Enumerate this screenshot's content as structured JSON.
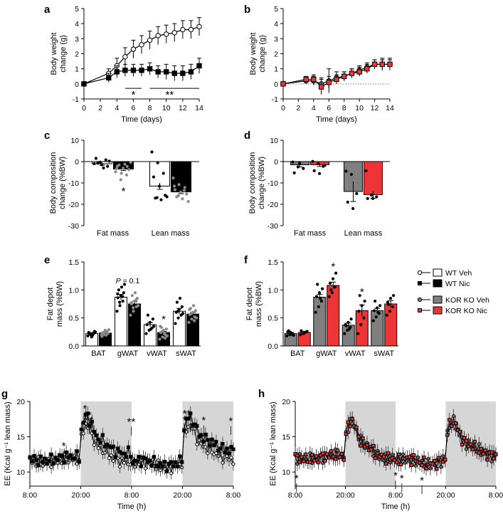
{
  "colors": {
    "wt_veh": "#ffffff",
    "wt_nic": "#000000",
    "kor_veh": "#7f7f7f",
    "kor_nic": "#ee3536",
    "night": "#d6d6d6",
    "dot_grey": "#8a8a8a"
  },
  "legend": {
    "items": [
      "WT Veh",
      "WT Nic",
      "KOR KO Veh",
      "KOR KO Nic"
    ]
  },
  "chart_data": [
    {
      "panel": "a",
      "type": "line",
      "xlabel": "Time (days)",
      "ylabel": "Body weight change (g)",
      "xlim": [
        0,
        14
      ],
      "ylim": [
        -1,
        5
      ],
      "xticks": [
        0,
        2,
        4,
        6,
        8,
        10,
        12,
        14
      ],
      "yticks": [
        -1,
        0,
        1,
        2,
        3,
        4,
        5
      ],
      "series": [
        {
          "name": "WT Veh",
          "x": [
            0,
            3,
            4,
            5,
            6,
            7,
            8,
            9,
            10,
            11,
            12,
            13,
            14
          ],
          "y": [
            0,
            0.7,
            1.2,
            1.8,
            2.3,
            2.6,
            2.9,
            3.2,
            3.3,
            3.4,
            3.6,
            3.6,
            3.8
          ],
          "err": [
            0.1,
            0.3,
            0.5,
            0.6,
            0.6,
            0.6,
            0.6,
            0.6,
            0.6,
            0.6,
            0.6,
            0.6,
            0.6
          ]
        },
        {
          "name": "WT Nic",
          "x": [
            0,
            3,
            4,
            5,
            6,
            7,
            8,
            9,
            10,
            11,
            12,
            13,
            14
          ],
          "y": [
            0,
            0.4,
            0.8,
            0.9,
            0.9,
            0.9,
            1.0,
            0.8,
            0.8,
            0.7,
            0.7,
            0.8,
            1.2
          ],
          "err": [
            0.1,
            0.3,
            0.4,
            0.4,
            0.4,
            0.4,
            0.4,
            0.4,
            0.5,
            0.5,
            0.5,
            0.5,
            0.5
          ]
        }
      ],
      "annotations": {
        "lines": [
          {
            "x1": 5,
            "x2": 7,
            "y": -0.3
          },
          {
            "x1": 8,
            "x2": 14,
            "y": -0.3
          }
        ],
        "stars": [
          {
            "x": 6,
            "text": "*"
          },
          {
            "x": 10.4,
            "text": "**"
          }
        ]
      }
    },
    {
      "panel": "b",
      "type": "line",
      "xlabel": "Time (days)",
      "ylabel": "Body weight change (g)",
      "xlim": [
        0,
        14
      ],
      "ylim": [
        -1,
        5
      ],
      "xticks": [
        0,
        2,
        4,
        6,
        8,
        10,
        12,
        14
      ],
      "yticks": [
        -1,
        0,
        1,
        2,
        3,
        4,
        5
      ],
      "baseline_dotted": 0,
      "series": [
        {
          "name": "KOR KO Veh",
          "x": [
            0,
            3,
            4,
            5,
            6,
            7,
            8,
            9,
            10,
            11,
            12,
            13,
            14
          ],
          "y": [
            0,
            0.2,
            0.2,
            0.0,
            0.2,
            0.4,
            0.5,
            0.7,
            0.9,
            1.1,
            1.3,
            1.3,
            1.3
          ],
          "err": [
            0.1,
            0.2,
            0.3,
            0.4,
            0.8,
            0.4,
            0.3,
            0.3,
            0.3,
            0.3,
            0.3,
            0.4,
            0.4
          ]
        },
        {
          "name": "KOR KO Nic",
          "x": [
            0,
            3,
            4,
            5,
            6,
            7,
            8,
            9,
            10,
            11,
            12,
            13,
            14
          ],
          "y": [
            0,
            0.3,
            0.3,
            -0.2,
            0.1,
            0.3,
            0.5,
            0.7,
            0.8,
            1.0,
            1.3,
            1.3,
            1.3
          ],
          "err": [
            0.1,
            0.2,
            0.3,
            0.5,
            0.4,
            0.3,
            0.3,
            0.3,
            0.3,
            0.3,
            0.3,
            0.3,
            0.3
          ]
        }
      ]
    },
    {
      "panel": "c",
      "type": "bar",
      "ylabel": "Body composition change (%BW)",
      "ylim": [
        -30,
        10
      ],
      "yticks": [
        -30,
        -20,
        -10,
        0,
        10
      ],
      "groups": [
        "Fat mass",
        "Lean mass"
      ],
      "series": [
        {
          "name": "WT Veh",
          "values": [
            -1,
            -11.5
          ],
          "err": [
            0.7,
            1.5
          ]
        },
        {
          "name": "WT Nic",
          "values": [
            -3.5,
            -14.2
          ],
          "err": [
            0.7,
            0.8
          ]
        }
      ],
      "points": [
        [
          [
            -1,
            -0.3,
            0.8,
            1.5,
            -1.5,
            -2.2,
            -0.7,
            -3.0,
            0.2
          ],
          [
            -4.8,
            -5.5,
            -2.3,
            -2.2,
            -3.1,
            -3.8,
            -1.6,
            -1.2,
            -0.4,
            -8.5,
            -6.3,
            -3.3
          ]
        ],
        [
          [
            4.5,
            -0.6,
            -5.5,
            -7.2,
            -11.5,
            -15.8,
            -17.1,
            -17.9,
            -16.5,
            -16.9
          ],
          [
            -7.7,
            -10.8,
            -12.1,
            -13.2,
            -14.3,
            -15.2,
            -16.5,
            -17.4,
            -18.7,
            -16.0,
            -13.5,
            -11.5
          ]
        ]
      ],
      "stars": [
        {
          "group": 0,
          "series": 1,
          "text": "*",
          "y": -11.5
        }
      ]
    },
    {
      "panel": "d",
      "type": "bar",
      "ylabel": "Body composition change (%BW)",
      "ylim": [
        -30,
        10
      ],
      "yticks": [
        -30,
        -20,
        -10,
        0,
        10
      ],
      "groups": [
        "Fat mass",
        "Lean mass"
      ],
      "series": [
        {
          "name": "KOR KO Veh",
          "values": [
            -1.5,
            -14
          ],
          "err": [
            1.0,
            4.7
          ]
        },
        {
          "name": "KOR KO Nic",
          "values": [
            -1.5,
            -15.5
          ],
          "err": [
            0.8,
            1.7
          ]
        }
      ],
      "points": [
        [
          [
            -0.2,
            -2.5,
            -3.2,
            -5.3,
            -0.8
          ],
          [
            0.1,
            -1.0,
            -2.2,
            -4.3,
            -5.6,
            -1.8
          ]
        ],
        [
          [
            -4.5,
            -6.0,
            -15.0,
            -19.0,
            -22.0
          ],
          [
            -4.3,
            -15.7,
            -16.5,
            -17.3,
            -17.3
          ]
        ]
      ]
    },
    {
      "panel": "e",
      "type": "bar",
      "ylabel": "Fat depot mass (%BW)",
      "ylim": [
        0,
        1.5
      ],
      "yticks": [
        0.0,
        0.5,
        1.0,
        1.5
      ],
      "groups": [
        "BAT",
        "gWAT",
        "vWAT",
        "sWAT"
      ],
      "series": [
        {
          "name": "WT Veh",
          "values": [
            0.22,
            0.87,
            0.38,
            0.62
          ],
          "err": [
            0.02,
            0.05,
            0.04,
            0.05
          ]
        },
        {
          "name": "WT Nic",
          "values": [
            0.23,
            0.75,
            0.24,
            0.57
          ],
          "err": [
            0.02,
            0.04,
            0.02,
            0.03
          ]
        }
      ],
      "points": [
        [
          [
            0.18,
            0.2,
            0.22,
            0.24,
            0.16,
            0.26,
            0.22,
            0.19,
            0.25
          ],
          [
            0.2,
            0.23,
            0.26,
            0.18,
            0.28,
            0.22,
            0.24,
            0.19,
            0.29,
            0.21,
            0.25,
            0.17
          ]
        ],
        [
          [
            0.62,
            0.72,
            0.8,
            0.86,
            0.9,
            0.95,
            1.0,
            1.05,
            1.1,
            0.78,
            0.88,
            0.93
          ],
          [
            0.55,
            0.62,
            0.7,
            0.75,
            0.8,
            0.85,
            0.9,
            0.95,
            0.72,
            0.68,
            0.82,
            0.77
          ]
        ],
        [
          [
            0.22,
            0.28,
            0.32,
            0.38,
            0.42,
            0.48,
            0.55,
            0.3,
            0.35
          ],
          [
            0.12,
            0.16,
            0.2,
            0.24,
            0.28,
            0.3,
            0.33,
            0.22,
            0.18,
            0.26,
            0.14,
            0.35
          ]
        ],
        [
          [
            0.4,
            0.5,
            0.55,
            0.6,
            0.65,
            0.7,
            0.78,
            0.85,
            0.58,
            0.62
          ],
          [
            0.42,
            0.48,
            0.52,
            0.56,
            0.6,
            0.63,
            0.67,
            0.72,
            0.5,
            0.58,
            0.45,
            0.65
          ]
        ]
      ],
      "stars": [
        {
          "group": 2,
          "series": 1,
          "text": "*",
          "y": 0.36
        }
      ],
      "annotation": {
        "text": "P = 0.1",
        "group": 1,
        "y": 1.07
      }
    },
    {
      "panel": "f",
      "type": "bar",
      "ylabel": "Fat depot mass (%BW)",
      "ylim": [
        0,
        1.5
      ],
      "yticks": [
        0.0,
        0.5,
        1.0,
        1.5
      ],
      "groups": [
        "BAT",
        "gWAT",
        "vWAT",
        "sWAT"
      ],
      "series": [
        {
          "name": "KOR KO Veh",
          "values": [
            0.22,
            0.87,
            0.37,
            0.63
          ],
          "err": [
            0.02,
            0.05,
            0.04,
            0.04
          ]
        },
        {
          "name": "KOR KO Nic",
          "values": [
            0.24,
            1.08,
            0.63,
            0.75
          ],
          "err": [
            0.02,
            0.06,
            0.1,
            0.06
          ]
        }
      ],
      "points": [
        [
          [
            0.18,
            0.2,
            0.22,
            0.25,
            0.24,
            0.19,
            0.27,
            0.21
          ],
          [
            0.2,
            0.22,
            0.25,
            0.27,
            0.23,
            0.26
          ]
        ],
        [
          [
            0.6,
            0.7,
            0.8,
            0.88,
            0.95,
            1.02,
            1.1,
            0.85
          ],
          [
            0.88,
            0.95,
            1.05,
            1.12,
            1.2,
            1.3,
            1.0
          ]
        ],
        [
          [
            0.22,
            0.28,
            0.33,
            0.38,
            0.42,
            0.48,
            0.36,
            0.3
          ],
          [
            0.22,
            0.38,
            0.5,
            0.62,
            0.72,
            0.8,
            0.9
          ]
        ],
        [
          [
            0.45,
            0.52,
            0.58,
            0.63,
            0.68,
            0.72,
            0.8,
            0.6
          ],
          [
            0.55,
            0.62,
            0.7,
            0.78,
            0.85,
            0.9,
            0.74
          ]
        ]
      ],
      "stars": [
        {
          "group": 1,
          "series": 1,
          "text": "*",
          "y": 1.3
        },
        {
          "group": 2,
          "series": 1,
          "text": "*",
          "y": 0.85
        }
      ]
    },
    {
      "panel": "g",
      "type": "line",
      "xlabel": "Time (h)",
      "ylabel": "EE (Kcal g⁻¹ lean mass)",
      "ylim": [
        8,
        20
      ],
      "yticks": [
        10,
        15,
        20
      ],
      "xlim": [
        0,
        48
      ],
      "xticks": [
        0,
        12,
        24,
        36,
        48
      ],
      "xticklabels": [
        "8:00",
        "20:00",
        "8:00",
        "20:00",
        "8:00"
      ],
      "dark_periods": [
        [
          12,
          24
        ],
        [
          36,
          48
        ]
      ],
      "series": [
        {
          "name": "WT Veh",
          "points": 96,
          "err": 0.9
        },
        {
          "name": "WT Nic",
          "points": 96,
          "err": 1.0
        }
      ],
      "stars": [
        {
          "x": 8.0,
          "y": 13.2,
          "text": "*"
        },
        {
          "x": 13.0,
          "y": 18.5,
          "text": "*"
        },
        {
          "x": 13.6,
          "y": 17.6,
          "text": "**"
        },
        {
          "x": 14.0,
          "y": 16.8,
          "text": "**"
        },
        {
          "x": 23.9,
          "y": 16.6,
          "text": "**"
        },
        {
          "x": 36.5,
          "y": 16.9,
          "text": "*"
        },
        {
          "x": 37.0,
          "y": 17.8,
          "text": "**"
        },
        {
          "x": 37.8,
          "y": 17.1,
          "text": "*"
        },
        {
          "x": 41.0,
          "y": 16.8,
          "text": "*"
        },
        {
          "x": 47.4,
          "y": 16.7,
          "text": "*"
        }
      ]
    },
    {
      "panel": "h",
      "type": "line",
      "xlabel": "Time (h)",
      "ylabel": "EE (Kcal g⁻¹ lean mass)",
      "ylim": [
        8,
        20
      ],
      "yticks": [
        10,
        15,
        20
      ],
      "xlim": [
        0,
        48
      ],
      "xticks": [
        0,
        12,
        24,
        36,
        48
      ],
      "xticklabels": [
        "8:00",
        "20:00",
        "8:00",
        "20:00",
        "8:00"
      ],
      "dark_periods": [
        [
          12,
          24
        ],
        [
          36,
          48
        ]
      ],
      "series": [
        {
          "name": "KOR KO Veh",
          "points": 96,
          "err": 1.0
        },
        {
          "name": "KOR KO Nic",
          "points": 96,
          "err": 1.0
        }
      ],
      "stars": [
        {
          "x": 0.3,
          "y": 8.6,
          "text": "*"
        },
        {
          "x": 24.0,
          "y": 9.0,
          "text": "*"
        },
        {
          "x": 25.5,
          "y": 8.6,
          "text": "*"
        },
        {
          "x": 30.3,
          "y": 8.3,
          "text": "*"
        }
      ]
    }
  ]
}
